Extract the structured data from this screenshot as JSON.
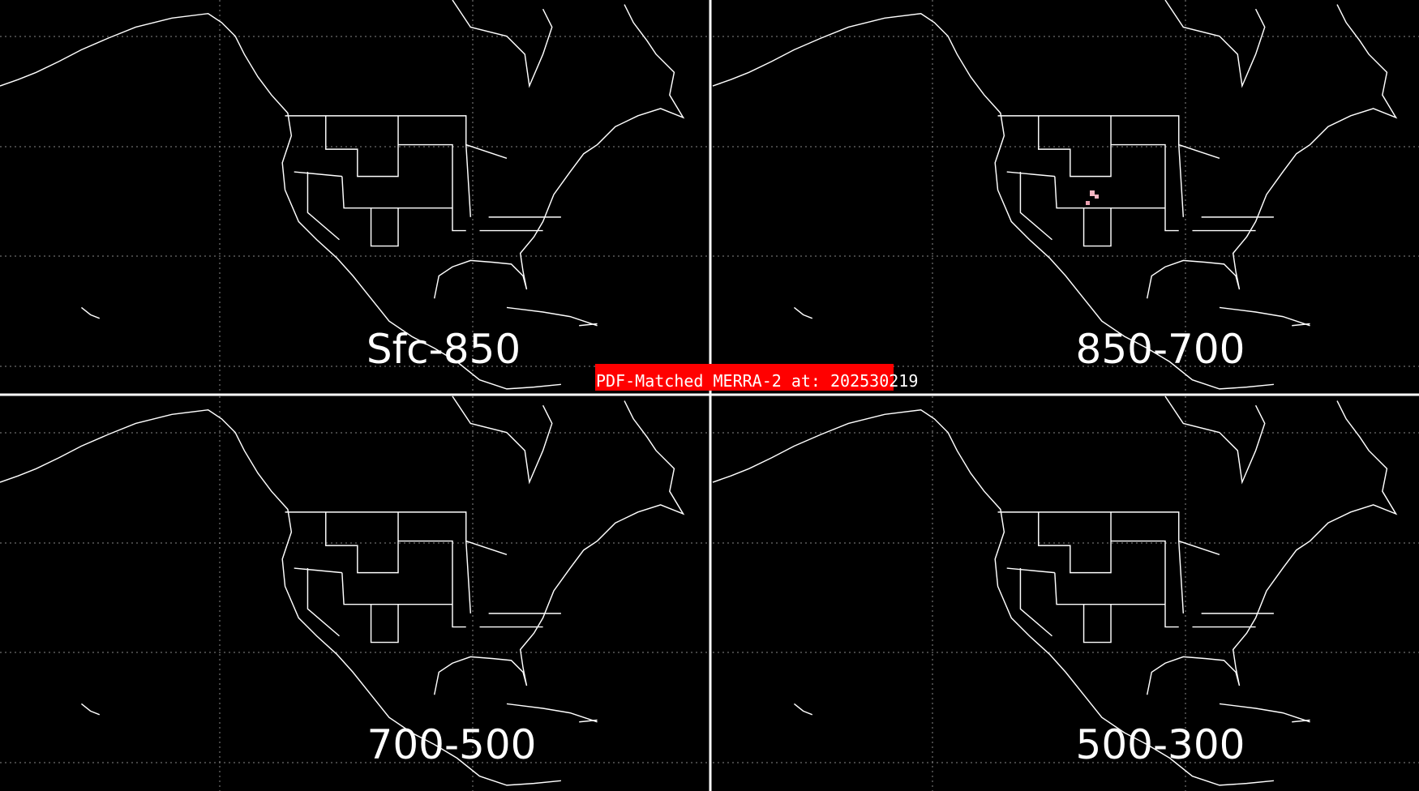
{
  "banner": "PDF-Matched MERRA-2 at: 202530219",
  "panels": [
    {
      "label": "Sfc-850"
    },
    {
      "label": "850-700"
    },
    {
      "label": "700-500"
    },
    {
      "label": "500-300"
    }
  ]
}
